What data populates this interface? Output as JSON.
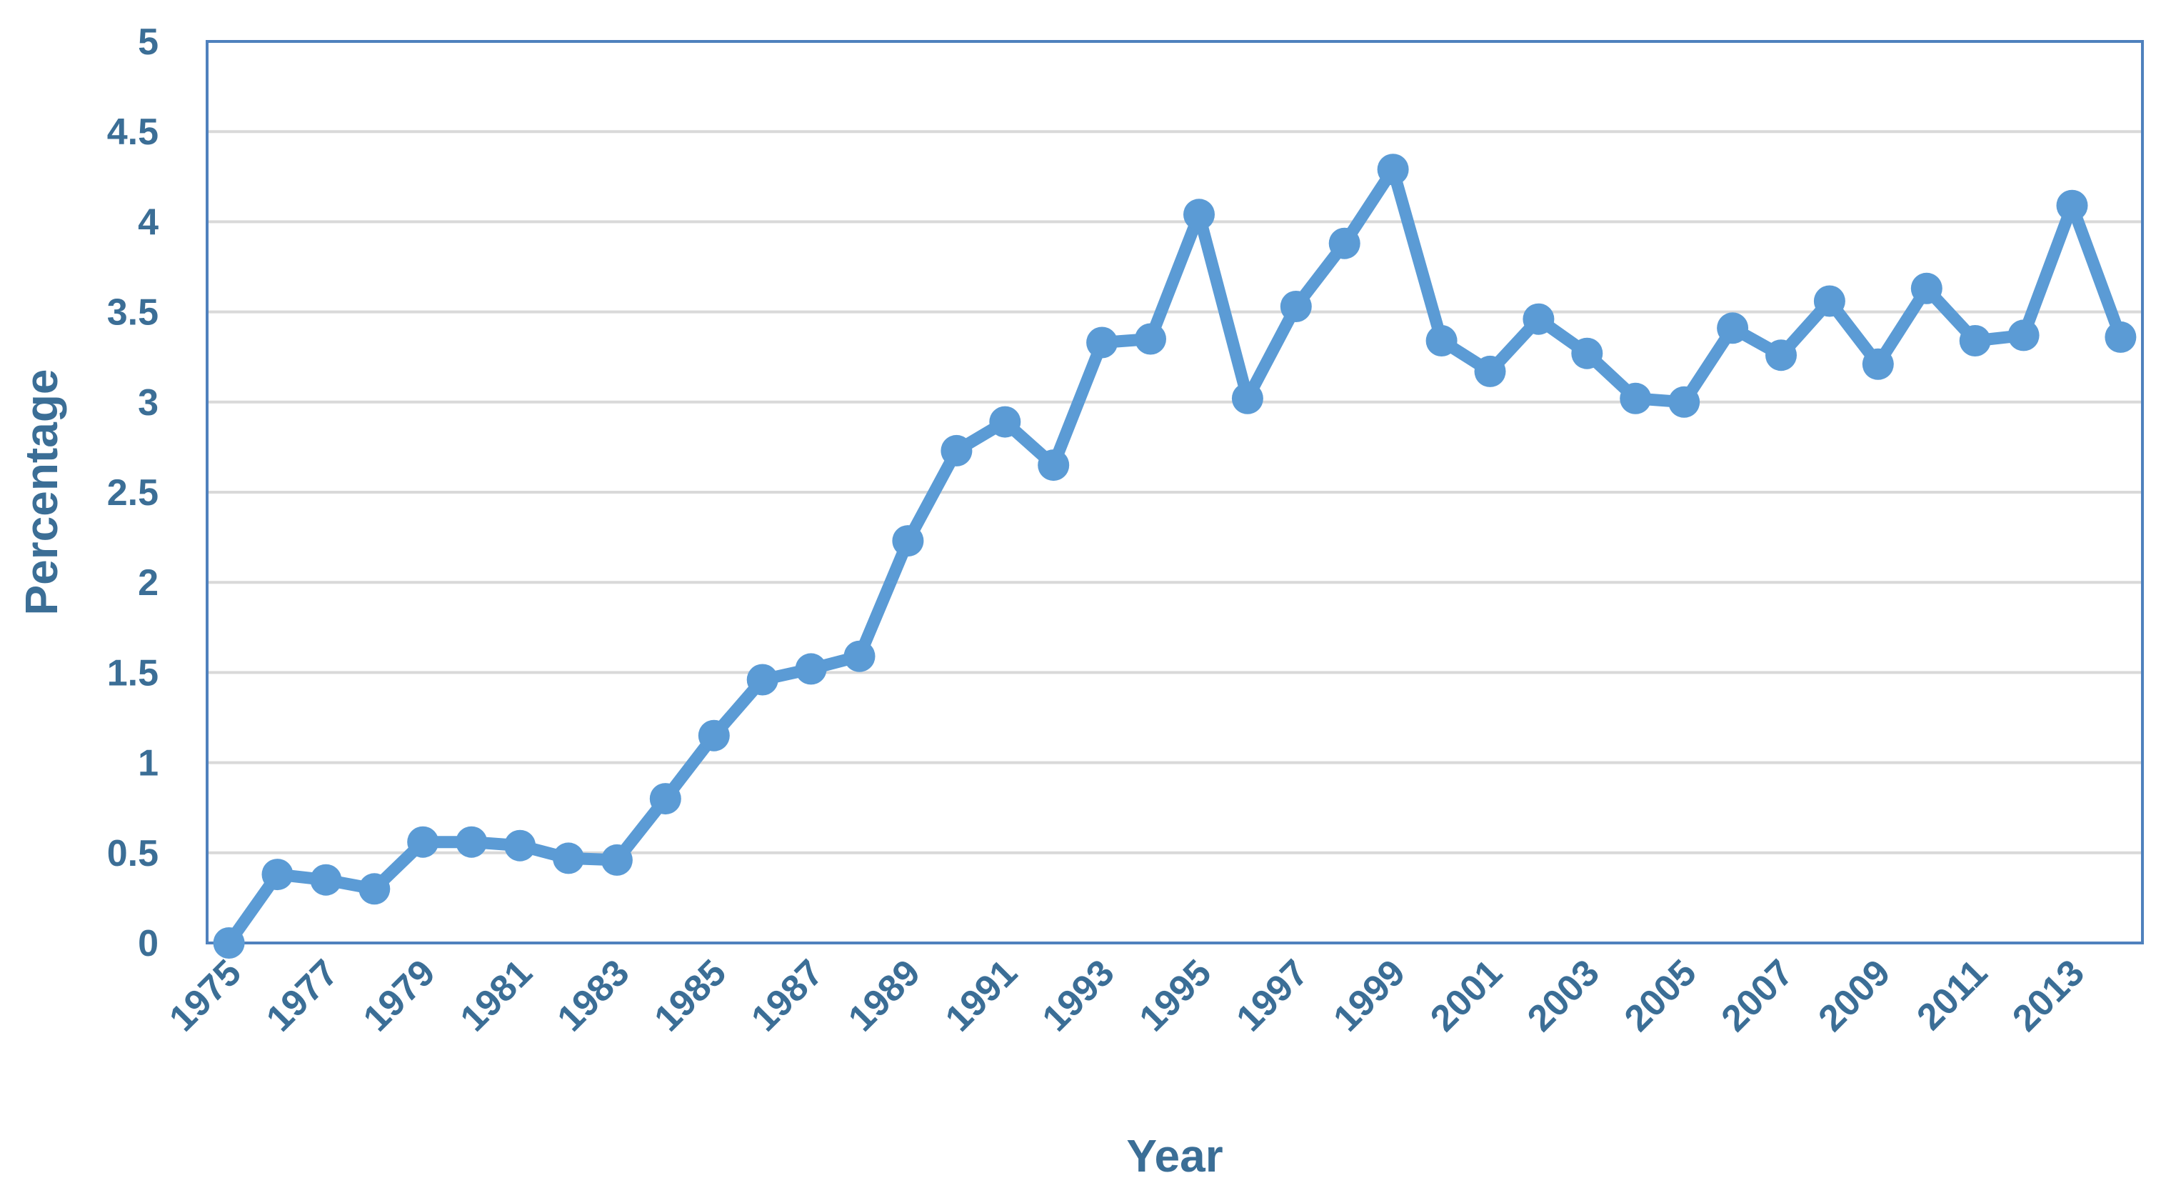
{
  "chart_data": {
    "type": "line",
    "xlabel": "Year",
    "ylabel": "Percentage",
    "ylim": [
      0,
      5
    ],
    "yticks": [
      "0",
      "0.5",
      "1",
      "1.5",
      "2",
      "2.5",
      "3",
      "3.5",
      "4",
      "4.5",
      "5"
    ],
    "xtick_labels": [
      "1975",
      "1977",
      "1979",
      "1981",
      "1983",
      "1985",
      "1987",
      "1989",
      "1991",
      "1993",
      "1995",
      "1997",
      "1999",
      "2001",
      "2003",
      "2005",
      "2007",
      "2009",
      "2011",
      "2013"
    ],
    "grid": true,
    "legend": "none",
    "series": [
      {
        "color": "#5b9bd5",
        "x": [
          1975,
          1976,
          1977,
          1978,
          1979,
          1980,
          1981,
          1982,
          1983,
          1984,
          1985,
          1986,
          1987,
          1988,
          1989,
          1990,
          1991,
          1992,
          1993,
          1994,
          1995,
          1996,
          1997,
          1998,
          1999,
          2000,
          2001,
          2002,
          2003,
          2004,
          2005,
          2006,
          2007,
          2008,
          2009,
          2010,
          2011,
          2012,
          2013,
          2014
        ],
        "values": [
          0.0,
          0.38,
          0.35,
          0.3,
          0.56,
          0.56,
          0.54,
          0.47,
          0.46,
          0.8,
          1.15,
          1.46,
          1.52,
          1.59,
          2.23,
          2.73,
          2.89,
          2.65,
          3.33,
          3.35,
          4.04,
          3.02,
          3.53,
          3.88,
          4.29,
          3.34,
          3.17,
          3.46,
          3.27,
          3.02,
          3.0,
          3.41,
          3.26,
          3.56,
          3.21,
          3.63,
          3.34,
          3.37,
          4.09,
          3.36
        ]
      }
    ]
  }
}
